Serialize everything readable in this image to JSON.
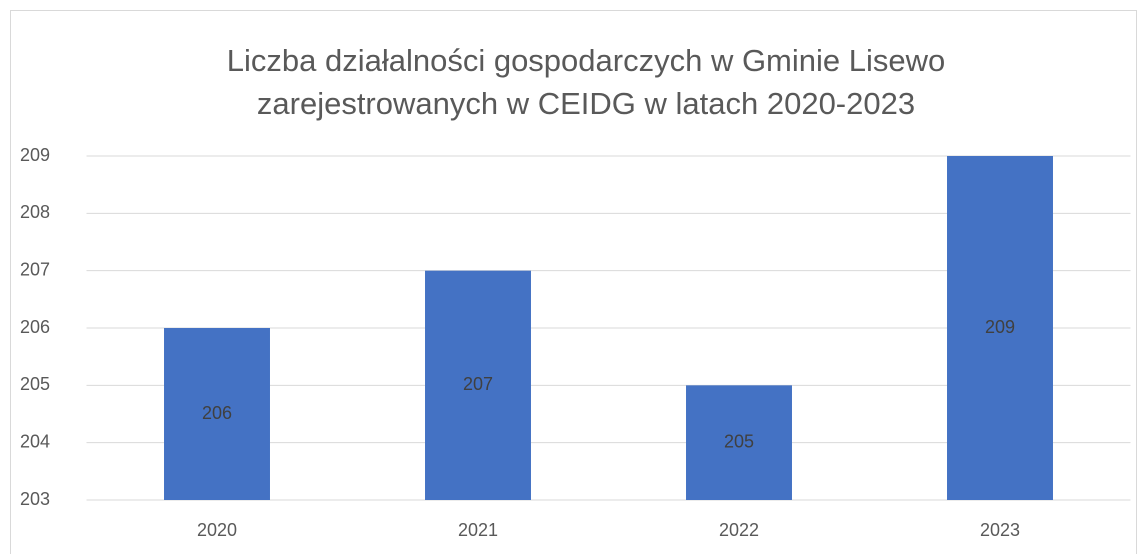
{
  "chart_data": {
    "type": "bar",
    "title": [
      "Liczba działalności gospodarczych w Gminie Lisewo",
      "zarejestrowanych w CEIDG w latach 2020-2023"
    ],
    "categories": [
      "2020",
      "2021",
      "2022",
      "2023"
    ],
    "values": [
      206,
      207,
      205,
      209
    ],
    "color": "#4472c4",
    "ylim": [
      203,
      209
    ],
    "yticks": [
      203,
      204,
      205,
      206,
      207,
      208,
      209
    ],
    "grid": true
  }
}
